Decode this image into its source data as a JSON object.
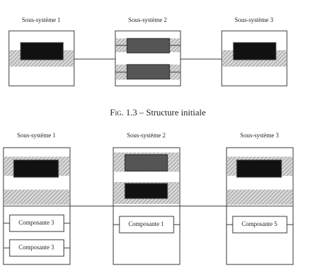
{
  "top": {
    "subsystems": [
      "Sous-système 1",
      "Sous-système 2",
      "Sous-système 3"
    ]
  },
  "caption": {
    "label": "Fig. 1.3",
    "separator": "–",
    "title": "Structure initiale"
  },
  "bottom": {
    "subsystems": [
      "Sous-système 1",
      "Sous-système 2",
      "Sous-système 3"
    ],
    "components": [
      [
        "Composante 3",
        "Composante 3"
      ],
      [
        "Composante 1"
      ],
      [
        "Composante 5"
      ]
    ]
  }
}
